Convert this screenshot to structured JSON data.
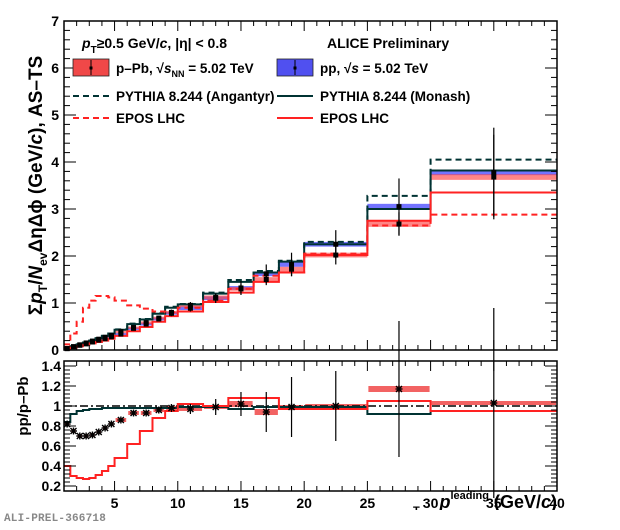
{
  "chart_data": [
    {
      "type": "line",
      "panel": "main",
      "title": "",
      "ylabel": "Σp_T/N_ev ΔηΔφ (GeV/c), AS–TS",
      "ylabel_parts": {
        "sigma": "Σ",
        "p": "p",
        "p_sub": "T",
        "slash": "/",
        "N": "N",
        "N_sub": "ev",
        "rest": "ΔηΔϕ (GeV/",
        "c": "c",
        "tail": "), AS–TS"
      },
      "xlim": [
        1,
        40
      ],
      "ylim": [
        0,
        7
      ],
      "yticks": [
        0,
        1,
        2,
        3,
        4,
        5,
        6,
        7
      ],
      "annotation_cuts": "p_T≥0.5 GeV/c, |η| < 0.8",
      "annotation_cuts_parts": {
        "p": "p",
        "sub": "T",
        "rest1": "≥0.5 GeV/",
        "c": "c",
        "rest2": ", |η| < 0.8"
      },
      "annotation_collab": "ALICE Preliminary",
      "legend": [
        {
          "key": "ppb_data",
          "label": "p–Pb, √s_NN = 5.02 TeV",
          "style": "box-red"
        },
        {
          "key": "pp_data",
          "label": "pp, √s = 5.02 TeV",
          "style": "box-blue"
        },
        {
          "key": "angantyr",
          "label": "PYTHIA 8.244 (Angantyr)",
          "style": "dashed-dark"
        },
        {
          "key": "monash",
          "label": "PYTHIA 8.244 (Monash)",
          "style": "solid-dark"
        },
        {
          "key": "epos_ppb",
          "label": "EPOS LHC",
          "style": "dashed-red"
        },
        {
          "key": "epos_pp",
          "label": "EPOS LHC",
          "style": "solid-red"
        }
      ],
      "legend_placement": "top",
      "bin_edges": [
        1,
        1.5,
        2,
        2.5,
        3,
        3.5,
        4,
        4.5,
        5,
        6,
        7,
        8,
        9,
        10,
        12,
        14,
        16,
        18,
        20,
        25,
        30,
        40
      ],
      "series": [
        {
          "name": "p–Pb data",
          "key": "ppb_data",
          "color": "#ff4444",
          "values": [
            0.03,
            0.07,
            0.11,
            0.15,
            0.19,
            0.23,
            0.27,
            0.31,
            0.39,
            0.48,
            0.58,
            0.68,
            0.8,
            0.95,
            1.12,
            1.3,
            1.5,
            1.72,
            2.02,
            2.68,
            3.68
          ],
          "stat_err": [
            0.01,
            0.01,
            0.01,
            0.02,
            0.02,
            0.02,
            0.02,
            0.03,
            0.03,
            0.04,
            0.05,
            0.05,
            0.06,
            0.07,
            0.08,
            0.1,
            0.12,
            0.15,
            0.2,
            0.25,
            0.9
          ],
          "sys_err": [
            0.01,
            0.01,
            0.01,
            0.01,
            0.01,
            0.01,
            0.02,
            0.02,
            0.02,
            0.02,
            0.03,
            0.03,
            0.03,
            0.04,
            0.04,
            0.04,
            0.05,
            0.05,
            0.05,
            0.06,
            0.06
          ]
        },
        {
          "name": "pp data",
          "key": "pp_data",
          "color": "#4444ff",
          "values": [
            0.03,
            0.07,
            0.1,
            0.13,
            0.17,
            0.21,
            0.24,
            0.28,
            0.34,
            0.46,
            0.55,
            0.66,
            0.78,
            0.89,
            1.1,
            1.32,
            1.62,
            1.82,
            2.25,
            3.05,
            3.78
          ],
          "stat_err": [
            0.01,
            0.01,
            0.01,
            0.02,
            0.02,
            0.02,
            0.03,
            0.03,
            0.03,
            0.04,
            0.05,
            0.05,
            0.06,
            0.07,
            0.1,
            0.15,
            0.2,
            0.25,
            0.3,
            0.6,
            0.95
          ],
          "sys_err": [
            0.01,
            0.01,
            0.01,
            0.01,
            0.01,
            0.01,
            0.02,
            0.02,
            0.02,
            0.02,
            0.03,
            0.03,
            0.03,
            0.04,
            0.04,
            0.04,
            0.05,
            0.05,
            0.05,
            0.06,
            0.06
          ]
        },
        {
          "name": "PYTHIA 8.244 (Angantyr)",
          "key": "angantyr",
          "color": "#003333",
          "dash": true,
          "values": [
            0.04,
            0.08,
            0.12,
            0.16,
            0.2,
            0.25,
            0.3,
            0.35,
            0.44,
            0.56,
            0.66,
            0.78,
            0.92,
            0.98,
            1.22,
            1.49,
            1.68,
            1.9,
            2.3,
            3.28,
            4.05
          ]
        },
        {
          "name": "PYTHIA 8.244 (Monash)",
          "key": "monash",
          "color": "#003333",
          "values": [
            0.04,
            0.08,
            0.12,
            0.16,
            0.2,
            0.25,
            0.3,
            0.35,
            0.43,
            0.55,
            0.65,
            0.77,
            0.9,
            0.97,
            1.2,
            1.45,
            1.65,
            1.88,
            2.25,
            3.0,
            3.82
          ]
        },
        {
          "name": "EPOS LHC (p–Pb)",
          "key": "epos_ppb",
          "color": "#ff2222",
          "dash": true,
          "values": [
            0.12,
            0.35,
            0.6,
            0.9,
            1.05,
            1.15,
            1.15,
            1.12,
            1.05,
            0.95,
            0.88,
            0.82,
            0.8,
            0.9,
            1.05,
            1.3,
            1.58,
            1.65,
            2.05,
            2.65,
            2.88
          ]
        },
        {
          "name": "EPOS LHC (pp)",
          "key": "epos_pp",
          "color": "#ff2222",
          "values": [
            0.02,
            0.05,
            0.08,
            0.11,
            0.14,
            0.17,
            0.2,
            0.24,
            0.3,
            0.4,
            0.49,
            0.6,
            0.72,
            0.82,
            1.02,
            1.22,
            1.45,
            1.65,
            2.02,
            2.75,
            3.35
          ]
        }
      ]
    },
    {
      "type": "line",
      "panel": "ratio",
      "ylabel": "pp/p–Pb",
      "xlabel": "p_T^leading (GeV/c)",
      "xlabel_parts": {
        "p": "p",
        "sub": "T",
        "sup": "leading",
        "rest1": " (GeV/",
        "c": "c",
        "rest2": ")"
      },
      "xlim": [
        1,
        40
      ],
      "ylim": [
        0.15,
        1.45
      ],
      "yticks": [
        0.2,
        0.4,
        0.6,
        0.8,
        1,
        1.2,
        1.4
      ],
      "ytick_labels": [
        "0.2",
        "0.4",
        "0.6",
        "0.8",
        "1",
        "1.2",
        "1.4"
      ],
      "xticks": [
        5,
        10,
        15,
        20,
        25,
        30,
        35,
        40
      ],
      "reference_line": 1,
      "bin_edges": [
        1,
        1.5,
        2,
        2.5,
        3,
        3.5,
        4,
        4.5,
        5,
        6,
        7,
        8,
        9,
        10,
        12,
        14,
        16,
        18,
        20,
        25,
        30,
        40
      ],
      "series": [
        {
          "name": "pp/p–Pb data",
          "key": "ratio_data",
          "color": "#000000",
          "values": [
            0.82,
            0.75,
            0.7,
            0.7,
            0.71,
            0.74,
            0.78,
            0.82,
            0.86,
            0.93,
            0.93,
            0.96,
            0.98,
            0.97,
            0.99,
            1.02,
            0.94,
            0.99,
            1.0,
            1.17,
            1.03
          ],
          "stat_err": [
            0.01,
            0.01,
            0.01,
            0.01,
            0.01,
            0.01,
            0.01,
            0.01,
            0.01,
            0.02,
            0.02,
            0.03,
            0.04,
            0.05,
            0.08,
            0.12,
            0.2,
            0.3,
            0.35,
            0.68,
            0.95
          ],
          "sys_err": [
            0.02,
            0.02,
            0.02,
            0.02,
            0.02,
            0.02,
            0.02,
            0.02,
            0.02,
            0.02,
            0.02,
            0.02,
            0.02,
            0.02,
            0.02,
            0.03,
            0.03,
            0.02,
            0.02,
            0.03,
            0.02
          ]
        },
        {
          "name": "PYTHIA 8.244 Monash/Angantyr",
          "key": "ratio_pythia",
          "color": "#003333",
          "values": [
            0.84,
            0.92,
            0.95,
            0.96,
            0.97,
            0.97,
            0.98,
            0.98,
            0.98,
            0.98,
            0.98,
            0.98,
            0.98,
            0.99,
            0.99,
            0.97,
            0.99,
            0.99,
            0.99,
            0.92,
            0.95
          ]
        },
        {
          "name": "EPOS LHC pp/p–Pb",
          "key": "ratio_epos",
          "color": "#ff2222",
          "values": [
            0.4,
            0.3,
            0.28,
            0.27,
            0.28,
            0.31,
            0.35,
            0.4,
            0.48,
            0.62,
            0.75,
            0.88,
            0.95,
            1.02,
            1.0,
            1.08,
            1.08,
            0.97,
            0.97,
            1.05,
            0.95
          ]
        }
      ]
    }
  ],
  "watermark": "ALI-PREL-366718"
}
